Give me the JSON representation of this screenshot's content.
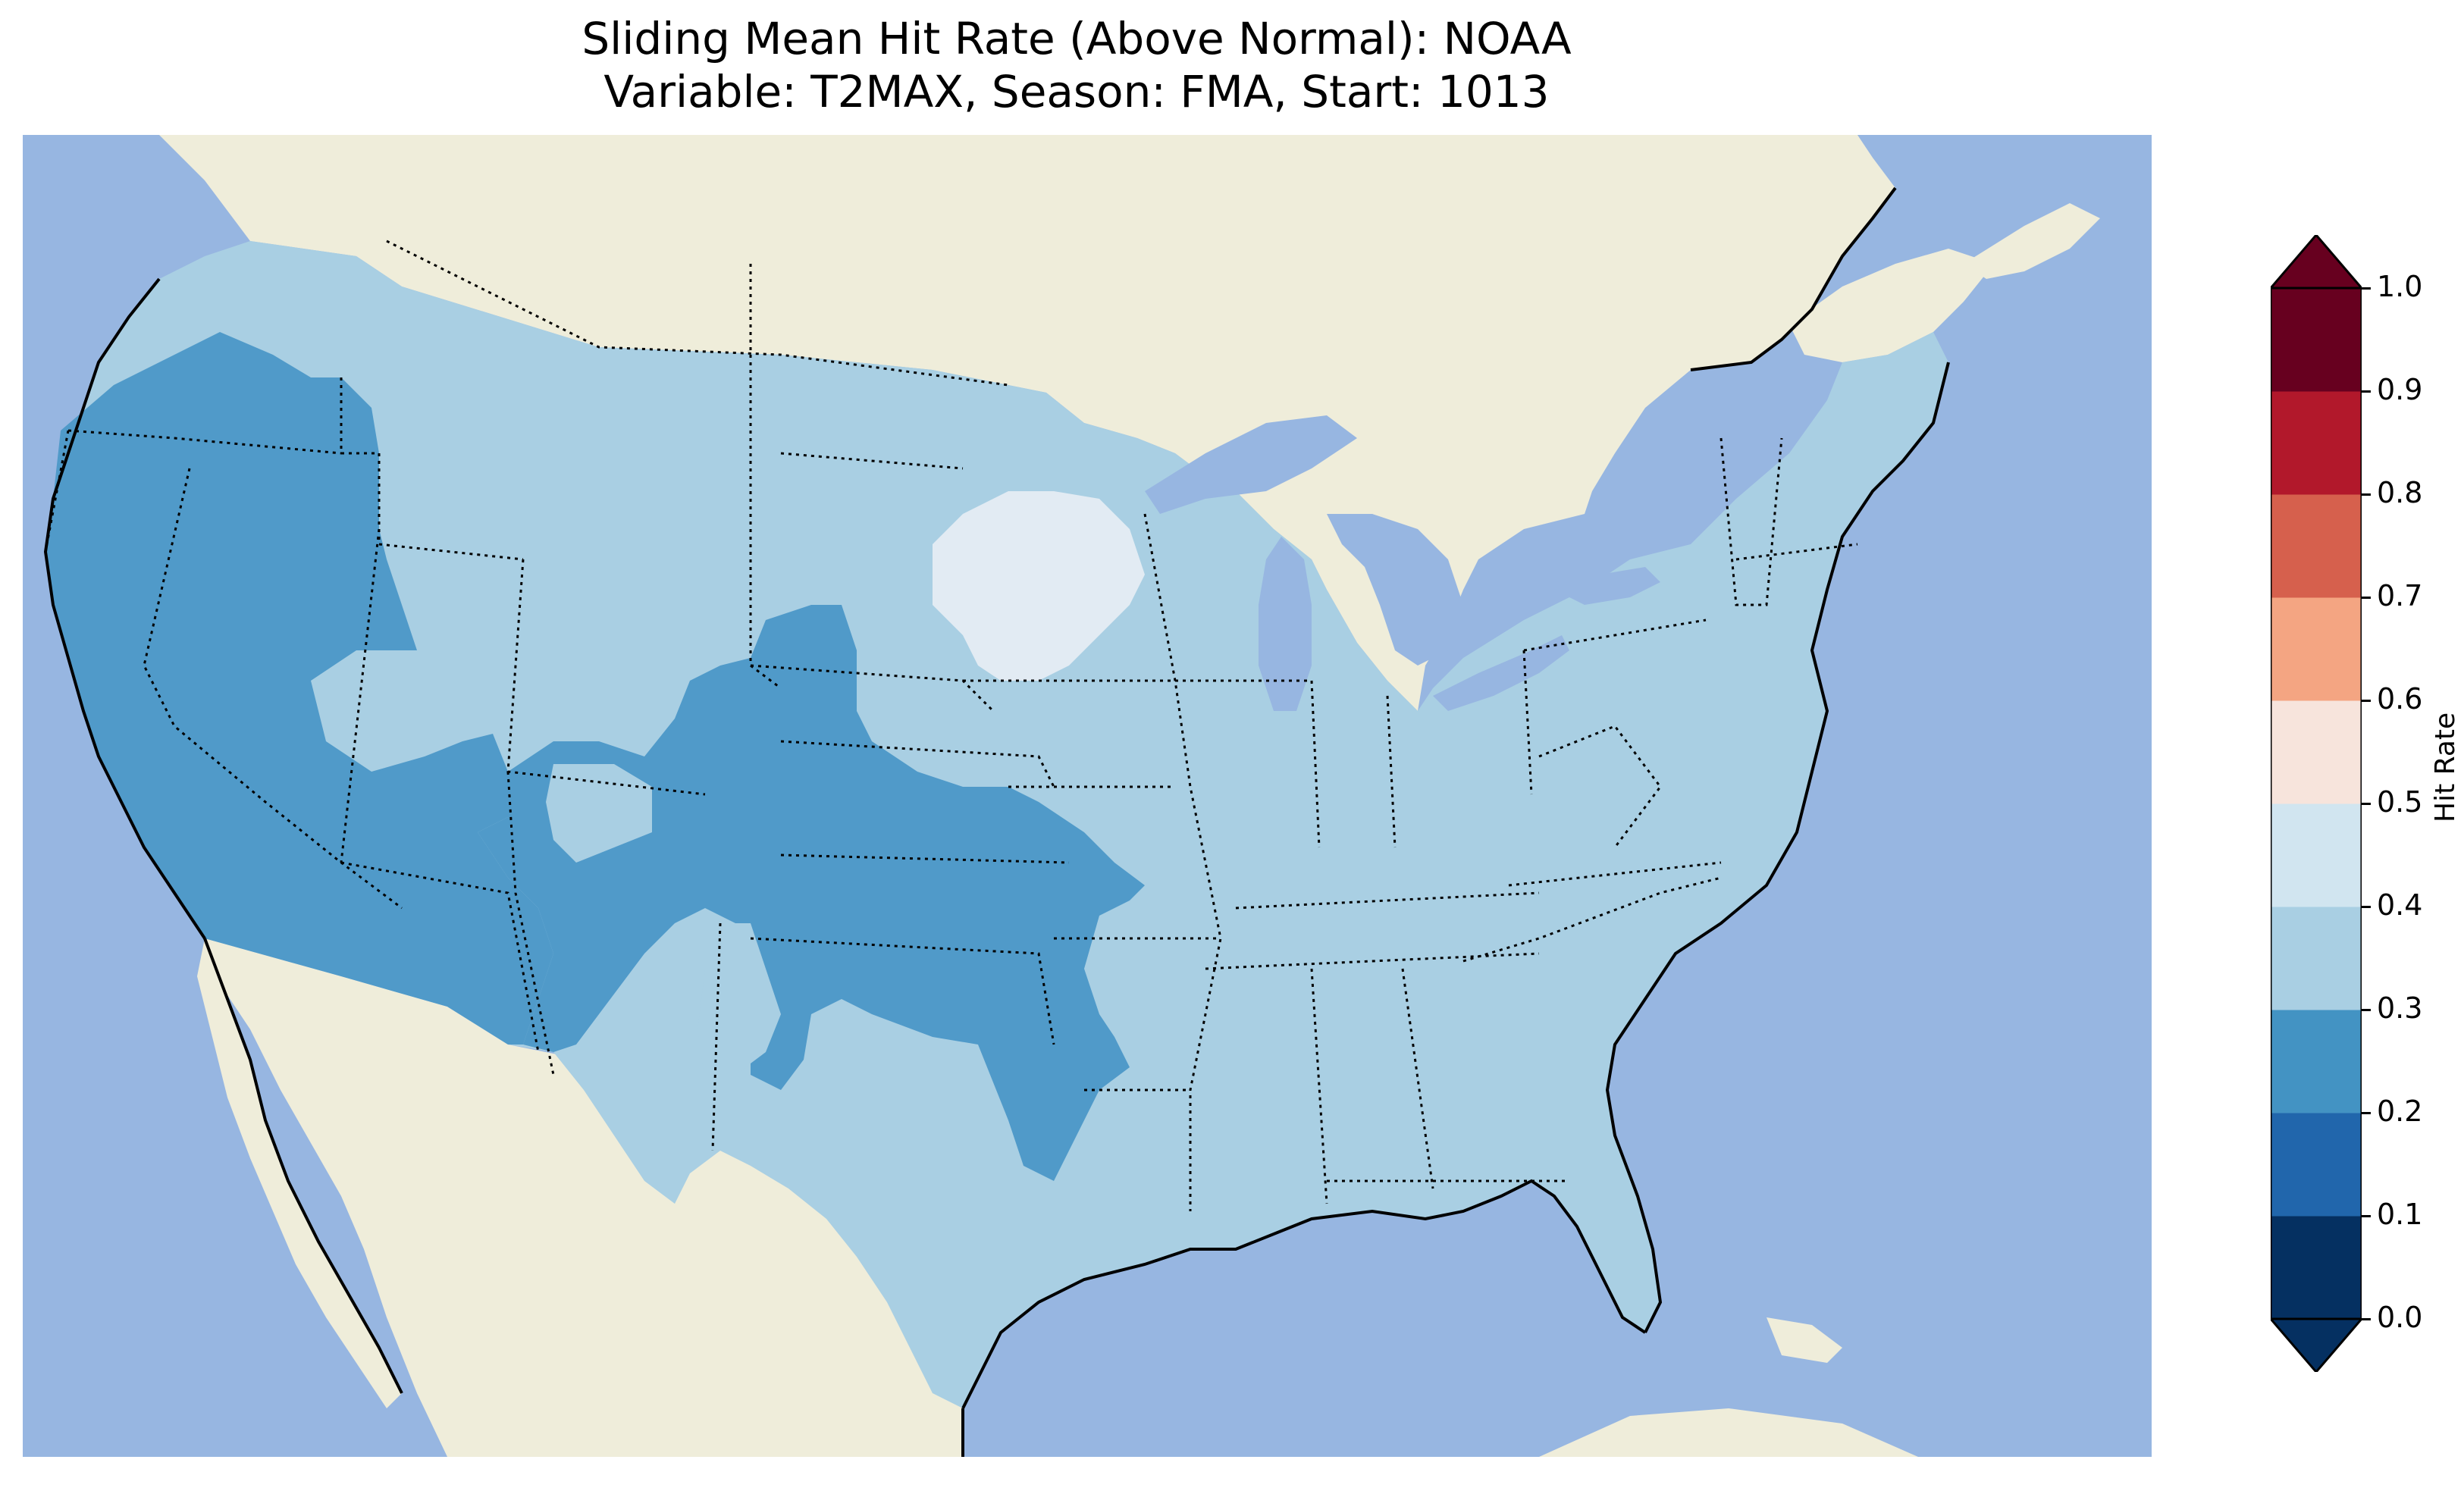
{
  "title_line1": "Sliding Mean Hit Rate (Above Normal): NOAA",
  "title_line2": "Variable: T2MAX, Season: FMA, Start: 1013",
  "map": {
    "projection": "lambert-conformal",
    "region": "CONUS",
    "ocean_color": "#97b6e1",
    "land_color": "#efedda",
    "state_borders": "dotted",
    "coastlines": "solid",
    "regions": [
      {
        "name": "Pacific Northwest",
        "category": "0.3-0.4"
      },
      {
        "name": "California / Nevada / Arizona",
        "category": "0.2-0.3"
      },
      {
        "name": "Oregon Cascades",
        "category": "0.2-0.3"
      },
      {
        "name": "Colorado / Kansas / Oklahoma",
        "category": "0.2-0.3"
      },
      {
        "name": "New Mexico / West Texas",
        "category": "0.2-0.3"
      },
      {
        "name": "Northern Plains / Midwest / East",
        "category": "0.3-0.4"
      },
      {
        "name": "Eastern South Dakota / Minnesota",
        "category": "0.4-0.5"
      }
    ]
  },
  "colorbar": {
    "label": "Hit Rate",
    "ticks": [
      "0.0",
      "0.1",
      "0.2",
      "0.3",
      "0.4",
      "0.5",
      "0.6",
      "0.7",
      "0.8",
      "0.9",
      "1.0"
    ],
    "colors": [
      "#053061",
      "#2166ac",
      "#4393c3",
      "#92c5de",
      "#d1e5f0",
      "#f7f7f7",
      "#fddbc7",
      "#f4a582",
      "#d6604d",
      "#b2182b",
      "#67001f"
    ],
    "extend": "both"
  },
  "chart_data": {
    "type": "heatmap",
    "title": "Sliding Mean Hit Rate (Above Normal): NOAA\nVariable: T2MAX, Season: FMA, Start: 1013",
    "colorbar_label": "Hit Rate",
    "levels": [
      0.0,
      0.1,
      0.2,
      0.3,
      0.4,
      0.5,
      0.6,
      0.7,
      0.8,
      0.9,
      1.0
    ],
    "regions": [
      {
        "name": "West Coast / Great Basin / Desert Southwest",
        "range": [
          0.2,
          0.3
        ]
      },
      {
        "name": "Central Rockies / Southern Plains",
        "range": [
          0.2,
          0.3
        ]
      },
      {
        "name": "Northwest / Northern Rockies",
        "range": [
          0.3,
          0.4
        ]
      },
      {
        "name": "Upper Midwest / Great Lakes / East / Southeast / Texas",
        "range": [
          0.3,
          0.4
        ]
      },
      {
        "name": "Eastern Dakotas / western Minnesota",
        "range": [
          0.4,
          0.5
        ]
      }
    ]
  }
}
